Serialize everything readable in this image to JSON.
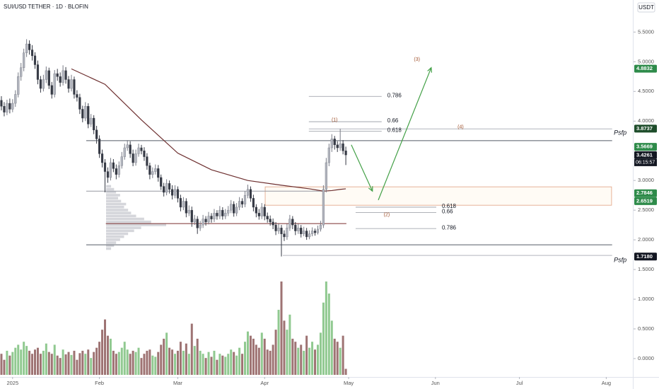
{
  "chart_data": {
    "type": "candlestick",
    "title": "SUI/USD TETHER · 1D · BLOFIN",
    "currency": "USDT",
    "countdown": "06:15:57",
    "xlim": [
      -0.5,
      225.5
    ],
    "ylim": [
      -0.31,
      6.04
    ],
    "yticks": [
      {
        "value": 5.5,
        "label": "5.5000"
      },
      {
        "value": 5.0,
        "label": "5.0000"
      },
      {
        "value": 4.5,
        "label": "4.5000"
      },
      {
        "value": 4.0,
        "label": "4.0000"
      },
      {
        "value": 3.0,
        "label": "3.0000"
      },
      {
        "value": 2.5,
        "label": "2.5000"
      },
      {
        "value": 2.0,
        "label": "2.0000"
      },
      {
        "value": 1.5,
        "label": "1.5000"
      },
      {
        "value": 1.0,
        "label": "1.0000"
      },
      {
        "value": 0.5,
        "label": "0.5000"
      },
      {
        "value": 0.0,
        "label": "0.0000"
      }
    ],
    "xticks": [
      {
        "value": 4,
        "label": "2025"
      },
      {
        "value": 35,
        "label": "Feb"
      },
      {
        "value": 63,
        "label": "Mar"
      },
      {
        "value": 94,
        "label": "Apr"
      },
      {
        "value": 124,
        "label": "May"
      },
      {
        "value": 155,
        "label": "Jun"
      },
      {
        "value": 185,
        "label": "Jul"
      },
      {
        "value": 216,
        "label": "Aug"
      }
    ],
    "up_color": "#b2b5be",
    "down_color": "#363a45",
    "candles": [
      [
        4.35,
        4.42,
        4.18,
        4.25
      ],
      [
        4.25,
        4.32,
        4.08,
        4.15
      ],
      [
        4.15,
        4.36,
        4.1,
        4.3
      ],
      [
        4.3,
        4.38,
        4.13,
        4.2
      ],
      [
        4.2,
        4.37,
        4.15,
        4.3
      ],
      [
        4.3,
        4.52,
        4.24,
        4.45
      ],
      [
        4.45,
        4.82,
        4.4,
        4.75
      ],
      [
        4.75,
        4.98,
        4.68,
        4.9
      ],
      [
        4.9,
        5.22,
        4.84,
        5.15
      ],
      [
        5.15,
        5.38,
        5.08,
        5.3
      ],
      [
        5.3,
        5.36,
        5.12,
        5.2
      ],
      [
        5.2,
        5.28,
        5.02,
        5.1
      ],
      [
        5.1,
        5.16,
        4.88,
        4.95
      ],
      [
        4.95,
        5.02,
        4.62,
        4.7
      ],
      [
        4.7,
        4.76,
        4.48,
        4.55
      ],
      [
        4.55,
        4.78,
        4.5,
        4.7
      ],
      [
        4.7,
        4.92,
        4.64,
        4.85
      ],
      [
        4.85,
        4.9,
        4.54,
        4.6
      ],
      [
        4.6,
        4.66,
        4.38,
        4.45
      ],
      [
        4.45,
        4.86,
        4.4,
        4.8
      ],
      [
        4.8,
        4.88,
        4.68,
        4.75
      ],
      [
        4.75,
        4.82,
        4.58,
        4.65
      ],
      [
        4.65,
        4.94,
        4.6,
        4.85
      ],
      [
        4.85,
        4.91,
        4.63,
        4.7
      ],
      [
        4.7,
        4.76,
        4.48,
        4.55
      ],
      [
        4.55,
        4.78,
        4.5,
        4.7
      ],
      [
        4.7,
        4.75,
        4.38,
        4.45
      ],
      [
        4.45,
        4.52,
        4.33,
        4.4
      ],
      [
        4.4,
        4.46,
        4.12,
        4.2
      ],
      [
        4.2,
        4.26,
        3.98,
        4.05
      ],
      [
        4.05,
        4.32,
        4.0,
        4.25
      ],
      [
        4.25,
        4.3,
        3.88,
        3.95
      ],
      [
        3.95,
        4.12,
        3.9,
        4.05
      ],
      [
        4.05,
        4.1,
        3.78,
        3.85
      ],
      [
        3.85,
        3.92,
        3.62,
        3.7
      ],
      [
        3.7,
        3.76,
        3.38,
        3.45
      ],
      [
        3.45,
        3.52,
        3.22,
        3.3
      ],
      [
        3.3,
        3.36,
        2.8,
        3.15
      ],
      [
        3.15,
        3.22,
        2.96,
        3.05
      ],
      [
        3.05,
        3.38,
        3.0,
        3.3
      ],
      [
        3.3,
        3.36,
        3.14,
        3.2
      ],
      [
        3.2,
        3.27,
        3.02,
        3.1
      ],
      [
        3.1,
        3.32,
        3.05,
        3.25
      ],
      [
        3.25,
        3.48,
        3.2,
        3.4
      ],
      [
        3.4,
        3.62,
        3.35,
        3.55
      ],
      [
        3.55,
        3.68,
        3.5,
        3.6
      ],
      [
        3.6,
        3.66,
        3.38,
        3.45
      ],
      [
        3.45,
        3.52,
        3.24,
        3.3
      ],
      [
        3.3,
        3.52,
        3.25,
        3.45
      ],
      [
        3.45,
        3.62,
        3.4,
        3.55
      ],
      [
        3.55,
        3.6,
        3.44,
        3.5
      ],
      [
        3.5,
        3.56,
        3.33,
        3.4
      ],
      [
        3.4,
        3.46,
        3.18,
        3.25
      ],
      [
        3.25,
        3.3,
        3.02,
        3.1
      ],
      [
        3.1,
        3.22,
        3.04,
        3.15
      ],
      [
        3.15,
        3.27,
        3.1,
        3.2
      ],
      [
        3.2,
        3.26,
        2.98,
        3.05
      ],
      [
        3.05,
        3.1,
        2.84,
        2.9
      ],
      [
        2.9,
        2.96,
        2.73,
        2.8
      ],
      [
        2.8,
        3.02,
        2.75,
        2.95
      ],
      [
        2.95,
        3.0,
        2.78,
        2.85
      ],
      [
        2.85,
        2.92,
        2.68,
        2.75
      ],
      [
        2.75,
        2.92,
        2.7,
        2.85
      ],
      [
        2.85,
        2.9,
        2.63,
        2.7
      ],
      [
        2.7,
        2.76,
        2.48,
        2.55
      ],
      [
        2.55,
        2.72,
        2.5,
        2.65
      ],
      [
        2.65,
        2.7,
        2.38,
        2.45
      ],
      [
        2.45,
        2.58,
        2.4,
        2.5
      ],
      [
        2.5,
        2.56,
        2.22,
        2.3
      ],
      [
        2.3,
        2.42,
        2.25,
        2.35
      ],
      [
        2.35,
        2.4,
        2.1,
        2.2
      ],
      [
        2.2,
        2.32,
        2.15,
        2.25
      ],
      [
        2.25,
        2.42,
        2.2,
        2.35
      ],
      [
        2.35,
        2.4,
        2.24,
        2.3
      ],
      [
        2.3,
        2.47,
        2.26,
        2.4
      ],
      [
        2.4,
        2.45,
        2.29,
        2.35
      ],
      [
        2.35,
        2.52,
        2.3,
        2.45
      ],
      [
        2.45,
        2.5,
        2.34,
        2.4
      ],
      [
        2.4,
        2.57,
        2.35,
        2.5
      ],
      [
        2.5,
        2.55,
        2.34,
        2.4
      ],
      [
        2.4,
        2.52,
        2.35,
        2.45
      ],
      [
        2.45,
        2.57,
        2.4,
        2.5
      ],
      [
        2.5,
        2.67,
        2.45,
        2.6
      ],
      [
        2.6,
        2.65,
        2.39,
        2.45
      ],
      [
        2.45,
        2.62,
        2.4,
        2.55
      ],
      [
        2.55,
        2.72,
        2.5,
        2.65
      ],
      [
        2.65,
        2.7,
        2.54,
        2.6
      ],
      [
        2.6,
        2.82,
        2.55,
        2.75
      ],
      [
        2.75,
        2.93,
        2.7,
        2.85
      ],
      [
        2.85,
        2.9,
        2.64,
        2.7
      ],
      [
        2.7,
        2.76,
        2.48,
        2.55
      ],
      [
        2.55,
        2.6,
        2.38,
        2.45
      ],
      [
        2.45,
        2.52,
        2.34,
        2.4
      ],
      [
        2.4,
        2.62,
        2.35,
        2.55
      ],
      [
        2.55,
        2.6,
        2.33,
        2.4
      ],
      [
        2.4,
        2.46,
        2.29,
        2.35
      ],
      [
        2.35,
        2.41,
        2.24,
        2.3
      ],
      [
        2.3,
        2.36,
        2.18,
        2.25
      ],
      [
        2.25,
        2.3,
        2.08,
        2.15
      ],
      [
        2.15,
        2.27,
        2.1,
        2.2
      ],
      [
        2.2,
        2.25,
        1.72,
        2.1
      ],
      [
        2.1,
        2.16,
        1.98,
        2.05
      ],
      [
        2.05,
        2.27,
        2.0,
        2.2
      ],
      [
        2.2,
        2.42,
        2.15,
        2.35
      ],
      [
        2.35,
        2.4,
        2.18,
        2.25
      ],
      [
        2.25,
        2.3,
        2.08,
        2.15
      ],
      [
        2.15,
        2.27,
        2.1,
        2.2
      ],
      [
        2.2,
        2.25,
        2.04,
        2.1
      ],
      [
        2.1,
        2.22,
        2.06,
        2.15
      ],
      [
        2.15,
        2.2,
        2.0,
        2.05
      ],
      [
        2.05,
        2.16,
        2.01,
        2.1
      ],
      [
        2.1,
        2.21,
        2.06,
        2.15
      ],
      [
        2.15,
        2.19,
        2.07,
        2.12
      ],
      [
        2.12,
        2.24,
        2.09,
        2.18
      ],
      [
        2.18,
        2.32,
        2.14,
        2.25
      ],
      [
        2.25,
        2.92,
        2.2,
        2.85
      ],
      [
        2.85,
        3.38,
        2.8,
        3.3
      ],
      [
        3.3,
        3.62,
        3.24,
        3.55
      ],
      [
        3.55,
        3.78,
        3.48,
        3.7
      ],
      [
        3.7,
        3.75,
        3.52,
        3.6
      ],
      [
        3.6,
        3.66,
        3.48,
        3.55
      ],
      [
        3.55,
        3.87,
        3.5,
        3.62
      ],
      [
        3.62,
        3.68,
        3.44,
        3.5
      ],
      [
        3.5,
        3.57,
        3.26,
        3.43
      ]
    ],
    "volume": {
      "up_color": "#7cbf7c",
      "down_color": "#8d5a5a",
      "values": [
        0.35,
        0.25,
        0.4,
        0.32,
        0.38,
        0.45,
        0.5,
        0.42,
        0.55,
        0.48,
        0.4,
        0.35,
        0.42,
        0.45,
        0.35,
        0.4,
        0.52,
        0.38,
        0.35,
        0.5,
        0.32,
        0.28,
        0.42,
        0.34,
        0.38,
        0.33,
        0.4,
        0.25,
        0.36,
        0.4,
        0.35,
        0.42,
        0.28,
        0.38,
        0.45,
        0.55,
        0.75,
        0.92,
        0.65,
        0.6,
        0.4,
        0.35,
        0.38,
        0.45,
        0.55,
        0.42,
        0.35,
        0.4,
        0.38,
        0.45,
        0.28,
        0.35,
        0.4,
        0.42,
        0.32,
        0.3,
        0.38,
        0.5,
        0.6,
        0.7,
        0.45,
        0.42,
        0.35,
        0.4,
        0.55,
        0.4,
        0.52,
        0.35,
        0.85,
        0.48,
        0.6,
        0.4,
        0.35,
        0.28,
        0.38,
        0.3,
        0.4,
        0.25,
        0.35,
        0.32,
        0.3,
        0.35,
        0.42,
        0.38,
        0.32,
        0.45,
        0.35,
        0.55,
        0.72,
        0.65,
        0.6,
        0.5,
        0.45,
        0.7,
        0.6,
        0.42,
        0.4,
        0.5,
        0.75,
        1.08,
        1.55,
        0.9,
        0.75,
        1.0,
        0.6,
        0.55,
        0.45,
        0.5,
        0.4,
        0.65,
        0.45,
        0.55,
        0.42,
        0.5,
        0.7,
        1.2,
        1.55,
        1.35,
        0.9,
        0.6,
        0.55,
        0.45,
        0.65,
        0.1
      ]
    },
    "moving_average": {
      "color": "#6d2f2f",
      "x": [
        25,
        37,
        50,
        63,
        75,
        88,
        100,
        110,
        115,
        118,
        121,
        123
      ],
      "values": [
        4.88,
        4.62,
        4.02,
        3.46,
        3.18,
        3.0,
        2.92,
        2.86,
        2.82,
        2.83,
        2.85,
        2.86
      ]
    },
    "volume_profile": {
      "prices": [
        1.85,
        1.9,
        1.95,
        2.0,
        2.05,
        2.1,
        2.15,
        2.2,
        2.25,
        2.3,
        2.35,
        2.4,
        2.45,
        2.5,
        2.55,
        2.6,
        2.65,
        2.7,
        2.75,
        2.8,
        2.85,
        2.9
      ],
      "values": [
        5,
        8,
        10,
        14,
        18,
        22,
        28,
        35,
        60,
        45,
        38,
        30,
        25,
        22,
        18,
        20,
        15,
        12,
        14,
        10,
        8,
        5
      ]
    },
    "lines": [
      {
        "value": 3.67,
        "from": 30.3,
        "to": 218.1,
        "color": "#555b66"
      },
      {
        "value": 2.274,
        "from": 37.3,
        "to": 123.2,
        "color": "#7a2e2e"
      },
      {
        "value": 1.917,
        "from": 30.3,
        "to": 218.1,
        "color": "#555b66"
      },
      {
        "value": 2.82,
        "from": 30.3,
        "to": 115,
        "color": "#9598a1"
      },
      {
        "value": 1.738,
        "from": 100.5,
        "to": 218.1,
        "color": "#b2b5be"
      },
      {
        "value": 3.869,
        "from": 109.8,
        "to": 218.1,
        "color": "#b2b5be"
      }
    ],
    "zone": {
      "from": 94.2,
      "to": 217.9,
      "top": 2.893,
      "bottom": 2.583,
      "color": "#e0a080"
    },
    "fib_levels": [
      {
        "label": "0.786",
        "value": 4.417,
        "from": 109.8,
        "to": 135.8
      },
      {
        "label": "0.66",
        "value": 3.99,
        "from": 109.8,
        "to": 135.8
      },
      {
        "label": "0.618",
        "value": 3.83,
        "from": 109.8,
        "to": 135.8
      },
      {
        "label": "0.618",
        "value": 2.55,
        "from": 126.5,
        "to": 155.3
      },
      {
        "label": "0.66",
        "value": 2.46,
        "from": 126.5,
        "to": 155.3
      },
      {
        "label": "0.786",
        "value": 2.19,
        "from": 126.5,
        "to": 155.3
      }
    ],
    "wave_labels": [
      {
        "label": "(1)",
        "x": 119,
        "value": 4.02
      },
      {
        "label": "(2)",
        "x": 137.6,
        "value": 2.42
      },
      {
        "label": "(3)",
        "x": 148.4,
        "value": 5.04
      },
      {
        "label": "(4)",
        "x": 164,
        "value": 3.9
      }
    ],
    "arrows": {
      "color": "#43a047",
      "items": [
        {
          "x": [
            124.96,
            132.5
          ],
          "values": [
            3.6,
            2.82
          ]
        },
        {
          "x": [
            134.6,
            153.5
          ],
          "values": [
            2.67,
            4.9
          ]
        }
      ]
    },
    "annotations": [
      {
        "label": "Psfp",
        "x": 221,
        "value": 3.8
      },
      {
        "label": "Psfp",
        "x": 221,
        "value": 1.655
      }
    ],
    "price_tags": [
      {
        "value": 4.8832,
        "color": "#2e8b4a"
      },
      {
        "value": 3.8737,
        "color": "#1e4d2b"
      },
      {
        "value": 3.5669,
        "color": "#2e8b4a"
      },
      {
        "value": 3.4261,
        "color": "#131722"
      },
      {
        "value": 2.7846,
        "color": "#2e8b4a"
      },
      {
        "value": 2.6519,
        "color": "#2e8b4a"
      },
      {
        "value": 1.718,
        "label": "1.7180",
        "color": "#131722"
      }
    ]
  }
}
